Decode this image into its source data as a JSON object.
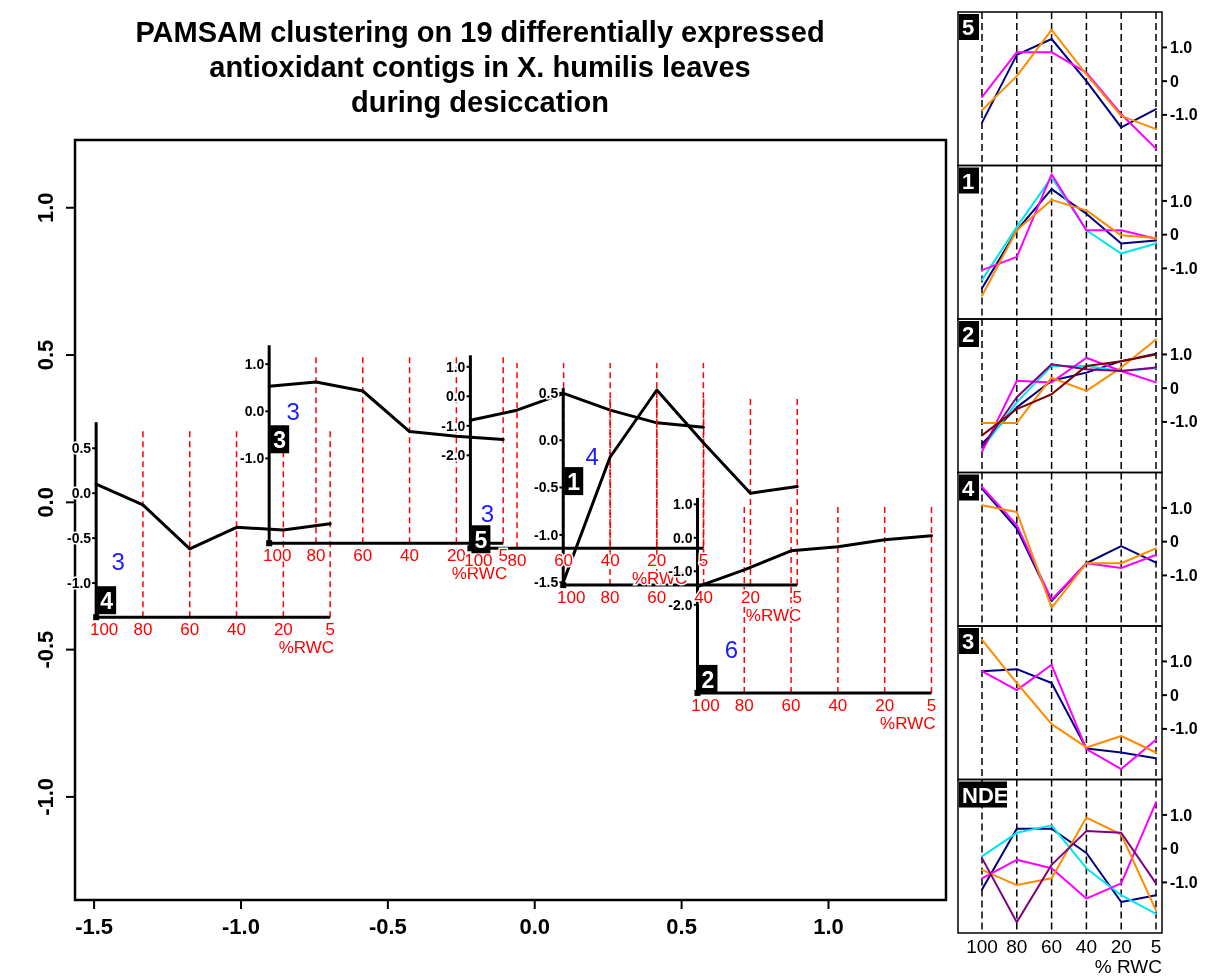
{
  "chart_data": [
    {
      "type": "scatter",
      "x": [
        -1.493,
        -0.904,
        -0.219,
        0.097,
        0.554
      ],
      "values": [
        -0.39,
        -0.139,
        -0.156,
        -0.281,
        -0.647
      ],
      "color": "#000000",
      "marker": "square",
      "title": "PAMSAM clustering on 19 differentially expressed\nantioxidant contigs in X. humilis leaves\nduring desiccation",
      "xlim": [
        -1.565,
        1.4
      ],
      "ylim": [
        -1.35,
        1.23
      ],
      "xticks": [
        {
          "value": -1.5,
          "label": "-1.5"
        },
        {
          "value": -1.0,
          "label": "-1.0"
        },
        {
          "value": -0.5,
          "label": "-0.5"
        },
        {
          "value": 0,
          "label": "0.0"
        },
        {
          "value": 0.5,
          "label": "0.5"
        },
        {
          "value": 1.0,
          "label": "1.0"
        }
      ],
      "yticks": [
        {
          "value": -1.0,
          "label": "-1.0"
        },
        {
          "value": -0.5,
          "label": "-0.5"
        },
        {
          "value": 0,
          "label": "0.0"
        },
        {
          "value": 0.5,
          "label": "0.5"
        },
        {
          "value": 1.0,
          "label": "1.0"
        }
      ]
    },
    {
      "type": "line",
      "categories": [
        "100",
        "80",
        "60",
        "40",
        "20",
        "5"
      ],
      "xlabel": "%RWC",
      "values": [
        0.1,
        -0.13,
        -0.62,
        -0.38,
        -0.41,
        -0.34
      ],
      "color": "#000000",
      "ylim": [
        -1.38,
        0.79
      ],
      "yticks": [
        {
          "value": -1.0,
          "label": "-1.0"
        },
        {
          "value": -0.5,
          "label": "-0.5"
        },
        {
          "value": 0,
          "label": "0.0"
        },
        {
          "value": 0.5,
          "label": "0.5"
        }
      ],
      "grid": "x",
      "annotations": [
        "4",
        "3"
      ]
    },
    {
      "type": "line",
      "categories": [
        "100",
        "80",
        "60",
        "40",
        "20",
        "5"
      ],
      "xlabel": "%RWC",
      "values": [
        0.53,
        0.62,
        0.43,
        -0.43,
        -0.53,
        -0.6
      ],
      "color": "#000000",
      "ylim": [
        -2.8,
        1.4
      ],
      "yticks": [
        {
          "value": -1.0,
          "label": "-1.0"
        },
        {
          "value": 0,
          "label": "0.0"
        },
        {
          "value": 1.0,
          "label": "1.0"
        }
      ],
      "grid": "x",
      "annotations": [
        "3",
        "3"
      ]
    },
    {
      "type": "line",
      "categories": [
        "100",
        "80",
        "60",
        "40",
        "20",
        "5"
      ],
      "xlabel": "%RWC",
      "values": [
        -0.81,
        -0.47,
        0.1,
        -0.47,
        -0.9,
        -1.05
      ],
      "color": "#000000",
      "ylim": [
        -5.15,
        1.39
      ],
      "yticks": [
        {
          "value": -2.0,
          "label": "-2.0"
        },
        {
          "value": -1.0,
          "label": "-1.0"
        },
        {
          "value": 0,
          "label": "0.0"
        },
        {
          "value": 1.0,
          "label": "1.0"
        }
      ],
      "grid": "x",
      "annotations": [
        "5",
        "3"
      ]
    },
    {
      "type": "line",
      "categories": [
        "100",
        "80",
        "60",
        "40",
        "20",
        "5"
      ],
      "xlabel": "%RWC",
      "values": [
        -1.5,
        -0.18,
        0.53,
        -0.03,
        -0.56,
        -0.49
      ],
      "color": "#000000",
      "ylim": [
        -1.53,
        0.55
      ],
      "yticks": [
        {
          "value": -1.5,
          "label": "-1.5"
        },
        {
          "value": -1.0,
          "label": "-1.0"
        },
        {
          "value": -0.5,
          "label": "-0.5"
        },
        {
          "value": 0,
          "label": "0.0"
        },
        {
          "value": 0.5,
          "label": "0.5"
        }
      ],
      "grid": "x",
      "annotations": [
        "1",
        "4"
      ]
    },
    {
      "type": "line",
      "categories": [
        "100",
        "80",
        "60",
        "40",
        "20",
        "5"
      ],
      "xlabel": "%RWC",
      "values": [
        -1.46,
        -0.96,
        -0.39,
        -0.27,
        -0.06,
        0.06
      ],
      "color": "#000000",
      "ylim": [
        -4.63,
        1.19
      ],
      "yticks": [
        {
          "value": -2.0,
          "label": "-2.0"
        },
        {
          "value": -1.0,
          "label": "-1.0"
        },
        {
          "value": 0,
          "label": "0.0"
        },
        {
          "value": 1.0,
          "label": "1.0"
        }
      ],
      "grid": "x",
      "annotations": [
        "2",
        "6"
      ]
    },
    {
      "type": "line",
      "categories": [
        "100",
        "80",
        "60",
        "40",
        "20",
        "5"
      ],
      "ylim": [
        -2.5,
        2.05
      ],
      "yticks": [
        {
          "value": -1,
          "label": "-1.0"
        },
        {
          "value": 0,
          "label": "0"
        },
        {
          "value": 1,
          "label": "1.0"
        }
      ],
      "grid": "x",
      "tick_labels": "y",
      "annotations": [
        "5"
      ],
      "series": [
        {
          "color": "#000080",
          "values": [
            -1.23,
            0.78,
            1.25,
            0,
            -1.37,
            -0.83
          ]
        },
        {
          "color": "#ff00ff",
          "values": [
            -0.47,
            0.86,
            0.86,
            0.25,
            -0.98,
            -2.0
          ]
        },
        {
          "color": "#ff8c00",
          "values": [
            -0.86,
            0.15,
            1.52,
            0.2,
            -1.03,
            -1.42
          ]
        }
      ]
    },
    {
      "type": "line",
      "categories": [
        "100",
        "80",
        "60",
        "40",
        "20",
        "5"
      ],
      "ylim": [
        -2.5,
        2.05
      ],
      "yticks": [
        {
          "value": -1,
          "label": "-1.0"
        },
        {
          "value": 0,
          "label": "0"
        },
        {
          "value": 1,
          "label": "1.0"
        }
      ],
      "grid": "x",
      "tick_labels": "y",
      "annotations": [
        "1"
      ],
      "series": [
        {
          "color": "#000080",
          "values": [
            -1.59,
            0.13,
            1.35,
            0.62,
            -0.26,
            -0.17
          ]
        },
        {
          "color": "#00e5ee",
          "values": [
            -1.34,
            0.23,
            1.7,
            0.13,
            -0.56,
            -0.26
          ]
        },
        {
          "color": "#ff00ff",
          "values": [
            -1.05,
            -0.66,
            1.79,
            0.13,
            0.13,
            -0.12
          ]
        },
        {
          "color": "#ff8c00",
          "values": [
            -1.81,
            0.13,
            1.03,
            0.72,
            -0.02,
            -0.1
          ]
        }
      ]
    },
    {
      "type": "line",
      "categories": [
        "100",
        "80",
        "60",
        "40",
        "20",
        "5"
      ],
      "ylim": [
        -2.5,
        2.05
      ],
      "yticks": [
        {
          "value": -1,
          "label": "-1.0"
        },
        {
          "value": 0,
          "label": "0"
        },
        {
          "value": 1,
          "label": "1.0"
        }
      ],
      "grid": "x",
      "tick_labels": "y",
      "annotations": [
        "2"
      ],
      "series": [
        {
          "color": "#000080",
          "values": [
            -1.65,
            -0.57,
            0.22,
            0.46,
            0.8,
            1.02
          ]
        },
        {
          "color": "#00e5ee",
          "values": [
            -1.79,
            -0.42,
            0.66,
            0.66,
            0.51,
            0.59
          ]
        },
        {
          "color": "#ff00ff",
          "values": [
            -1.89,
            0.22,
            0.17,
            0.9,
            0.51,
            0.17
          ]
        },
        {
          "color": "#ff8c00",
          "values": [
            -1.03,
            -1.03,
            0.31,
            -0.08,
            0.61,
            1.44
          ]
        },
        {
          "color": "#800080",
          "values": [
            -1.75,
            -0.27,
            0.71,
            0.56,
            0.51,
            0.61
          ]
        },
        {
          "color": "#800000",
          "values": [
            -1.4,
            -0.62,
            -0.18,
            0.66,
            0.8,
            1.0
          ]
        }
      ]
    },
    {
      "type": "line",
      "categories": [
        "100",
        "80",
        "60",
        "40",
        "20",
        "5"
      ],
      "ylim": [
        -2.5,
        2.05
      ],
      "yticks": [
        {
          "value": -1,
          "label": "-1.0"
        },
        {
          "value": 0,
          "label": "0"
        },
        {
          "value": 1,
          "label": "1.0"
        }
      ],
      "grid": "x",
      "tick_labels": "y",
      "annotations": [
        "4"
      ],
      "series": [
        {
          "color": "#000080",
          "values": [
            1.57,
            0.39,
            -1.76,
            -0.64,
            -0.13,
            -0.62
          ]
        },
        {
          "color": "#ff00ff",
          "values": [
            1.62,
            0.49,
            -1.72,
            -0.64,
            -0.78,
            -0.39
          ]
        },
        {
          "color": "#ff8c00",
          "values": [
            1.08,
            0.88,
            -1.96,
            -0.64,
            -0.64,
            -0.2
          ]
        }
      ]
    },
    {
      "type": "line",
      "categories": [
        "100",
        "80",
        "60",
        "40",
        "20",
        "5"
      ],
      "ylim": [
        -2.5,
        2.05
      ],
      "yticks": [
        {
          "value": -1,
          "label": "-1.0"
        },
        {
          "value": 0,
          "label": "0"
        },
        {
          "value": 1,
          "label": "1.0"
        }
      ],
      "grid": "x",
      "tick_labels": "y",
      "annotations": [
        "3"
      ],
      "series": [
        {
          "color": "#000080",
          "values": [
            0.71,
            0.77,
            0.36,
            -1.58,
            -1.7,
            -1.87
          ]
        },
        {
          "color": "#ff00ff",
          "values": [
            0.71,
            0.15,
            0.9,
            -1.6,
            -2.19,
            -1.32
          ]
        },
        {
          "color": "#ff8c00",
          "values": [
            1.64,
            0.36,
            -0.86,
            -1.55,
            -1.21,
            -1.7
          ]
        }
      ]
    },
    {
      "type": "line",
      "categories": [
        "100",
        "80",
        "60",
        "40",
        "20",
        "5"
      ],
      "xlabel": "% RWC",
      "ylim": [
        -2.5,
        2.05
      ],
      "yticks": [
        {
          "value": -1,
          "label": "-1.0"
        },
        {
          "value": 0,
          "label": "0"
        },
        {
          "value": 1,
          "label": "1.0"
        }
      ],
      "grid": "x",
      "annotations": [
        "NDE"
      ],
      "series": [
        {
          "color": "#000080",
          "values": [
            -1.21,
            0.59,
            0.59,
            -0.13,
            -1.58,
            -1.38
          ]
        },
        {
          "color": "#00e5ee",
          "values": [
            -0.23,
            0.47,
            0.69,
            -0.58,
            -1.38,
            -1.93
          ]
        },
        {
          "color": "#ff00ff",
          "values": [
            -0.88,
            -0.33,
            -0.58,
            -1.48,
            -1.03,
            1.37
          ]
        },
        {
          "color": "#ff8c00",
          "values": [
            -0.63,
            -1.08,
            -0.88,
            0.92,
            0.42,
            -1.83
          ]
        },
        {
          "color": "#800080",
          "values": [
            -0.28,
            -2.18,
            -0.48,
            0.52,
            0.47,
            -1.03
          ]
        }
      ]
    }
  ]
}
